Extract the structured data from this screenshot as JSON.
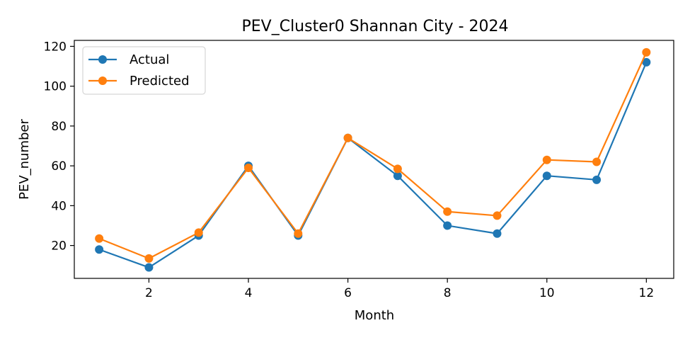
{
  "chart_data": {
    "type": "line",
    "title": "PEV_Cluster0 Shannan City - 2024",
    "xlabel": "Month",
    "ylabel": "PEV_number",
    "x": [
      1,
      2,
      3,
      4,
      5,
      6,
      7,
      8,
      9,
      10,
      11,
      12
    ],
    "xlim": [
      0.5,
      12.55
    ],
    "ylim": [
      3.5,
      123
    ],
    "xticks": [
      2,
      4,
      6,
      8,
      10,
      12
    ],
    "yticks": [
      20,
      40,
      60,
      80,
      100,
      120
    ],
    "grid": false,
    "legend_position": "top-left",
    "series": [
      {
        "name": "Actual",
        "color": "#1f77b4",
        "marker": "circle",
        "values": [
          18,
          9,
          25,
          60,
          25,
          74,
          55,
          30,
          26,
          55,
          53,
          112
        ]
      },
      {
        "name": "Predicted",
        "color": "#ff7f0e",
        "marker": "circle",
        "values": [
          23.5,
          13.5,
          26.5,
          59,
          26,
          74,
          58.5,
          37,
          35,
          63,
          62,
          117
        ]
      }
    ]
  }
}
